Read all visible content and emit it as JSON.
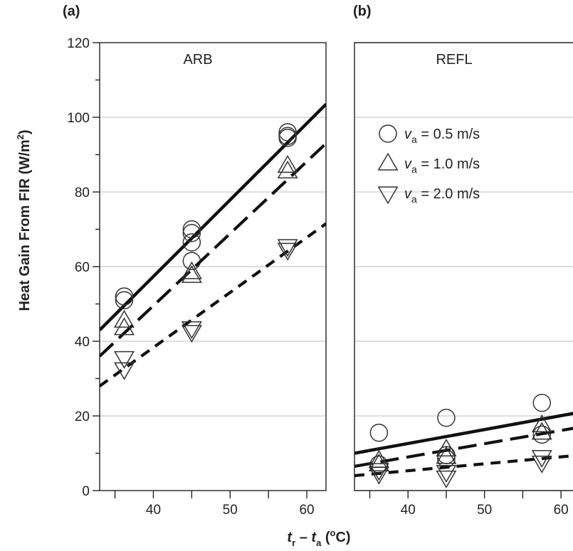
{
  "chart_data": [
    {
      "type": "scatter",
      "panel_label": "(a)",
      "title": "ARB",
      "ylabel": "Heat Gain From FIR (W/m2)",
      "xlim": [
        33,
        62.5
      ],
      "ylim": [
        0,
        120
      ],
      "x_ticks": [
        40,
        50,
        60
      ],
      "y_ticks": [
        0,
        20,
        40,
        60,
        80,
        100,
        120
      ],
      "grid": true,
      "series": [
        {
          "name": "v_a = 0.5 m/s",
          "marker": "circle",
          "points": [
            [
              36.2,
              52
            ],
            [
              36.2,
              51
            ],
            [
              45,
              70
            ],
            [
              45,
              69
            ],
            [
              45,
              66.5
            ],
            [
              45,
              61.5
            ],
            [
              57.5,
              96
            ],
            [
              57.5,
              95
            ],
            [
              57.5,
              94.5
            ]
          ],
          "fit": {
            "style": "solid",
            "x": [
              33,
              62.5
            ],
            "y": [
              43,
              103.5
            ]
          }
        },
        {
          "name": "v_a = 1.0 m/s",
          "marker": "triangle-up",
          "points": [
            [
              36.2,
              45.5
            ],
            [
              36.2,
              43.5
            ],
            [
              45,
              58.5
            ],
            [
              45,
              57.5
            ],
            [
              57.5,
              87
            ],
            [
              57.5,
              85.5
            ]
          ],
          "fit": {
            "style": "long-dash",
            "x": [
              33,
              62.5
            ],
            "y": [
              36,
              93
            ]
          }
        },
        {
          "name": "v_a = 2.0 m/s",
          "marker": "triangle-down",
          "points": [
            [
              36.2,
              35.5
            ],
            [
              36.2,
              32.5
            ],
            [
              45,
              43.5
            ],
            [
              45,
              42.5
            ],
            [
              57.5,
              65.5
            ],
            [
              57.5,
              64.5
            ]
          ],
          "fit": {
            "style": "short-dash",
            "x": [
              33,
              62.5
            ],
            "y": [
              28,
              71.5
            ]
          }
        }
      ]
    },
    {
      "type": "scatter",
      "panel_label": "(b)",
      "title": "REFL",
      "xlim": [
        33,
        62.5
      ],
      "ylim": [
        0,
        120
      ],
      "x_ticks": [
        40,
        50,
        60
      ],
      "x_tick_labels": [
        "40",
        "50",
        "60"
      ],
      "grid": true,
      "legend": {
        "placement": "upper-left",
        "entries": [
          {
            "marker": "circle",
            "symbol": "v",
            "subscript": "a",
            "rest": " = 0.5 m/s"
          },
          {
            "marker": "triangle-up",
            "symbol": "v",
            "subscript": "a",
            "rest": " = 1.0 m/s"
          },
          {
            "marker": "triangle-down",
            "symbol": "v",
            "subscript": "a",
            "rest": " = 2.0 m/s"
          }
        ]
      },
      "series": [
        {
          "name": "v_a = 0.5 m/s",
          "marker": "circle",
          "points": [
            [
              36.2,
              15.5
            ],
            [
              36.2,
              7
            ],
            [
              45,
              19.5
            ],
            [
              45,
              9.5
            ],
            [
              45,
              8.5
            ],
            [
              57.5,
              23.5
            ],
            [
              57.5,
              15
            ]
          ],
          "fit": {
            "style": "solid",
            "x": [
              33,
              62.5
            ],
            "y": [
              10,
              21
            ]
          }
        },
        {
          "name": "v_a = 1.0 m/s",
          "marker": "triangle-up",
          "points": [
            [
              36.2,
              8
            ],
            [
              36.2,
              7
            ],
            [
              45,
              11
            ],
            [
              45,
              9
            ],
            [
              57.5,
              17.5
            ],
            [
              57.5,
              15.5
            ]
          ],
          "fit": {
            "style": "long-dash",
            "x": [
              33,
              62.5
            ],
            "y": [
              6.5,
              17
            ]
          }
        },
        {
          "name": "v_a = 2.0 m/s",
          "marker": "triangle-down",
          "points": [
            [
              36.2,
              5.5
            ],
            [
              36.2,
              4.5
            ],
            [
              45,
              5
            ],
            [
              45,
              3.5
            ],
            [
              57.5,
              9
            ],
            [
              57.5,
              7.5
            ]
          ],
          "fit": {
            "style": "short-dash",
            "x": [
              33,
              62.5
            ],
            "y": [
              4,
              9.5
            ]
          }
        }
      ]
    }
  ],
  "labels": {
    "ylabel_main": "Heat Gain From FIR (W/m",
    "ylabel_sup": "2",
    "ylabel_close": ")",
    "xlabel_t1": "t",
    "xlabel_sub1": "r",
    "xlabel_dash": " – ",
    "xlabel_t2": "t",
    "xlabel_sub2": "a",
    "xlabel_open": " (",
    "xlabel_sup": "o",
    "xlabel_unit": "C)"
  }
}
